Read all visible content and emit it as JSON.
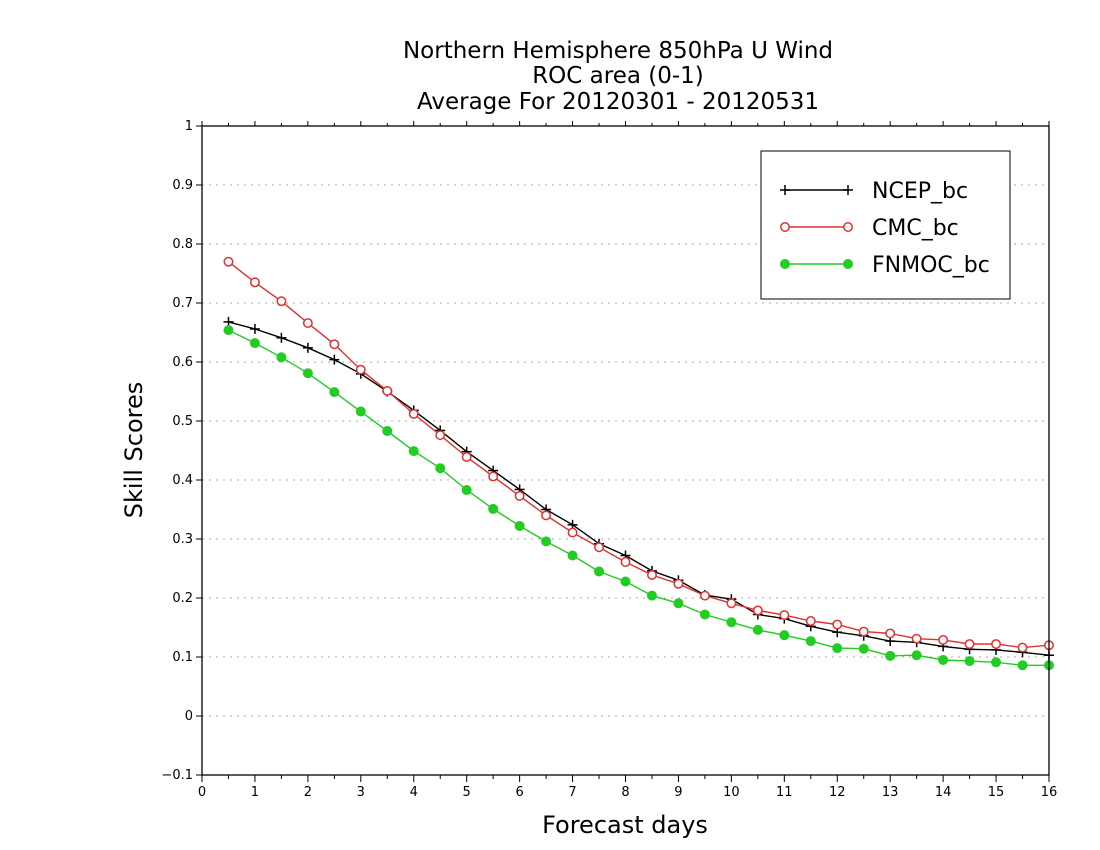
{
  "chart_data": {
    "type": "line",
    "title": [
      "Northern Hemisphere 850hPa U Wind",
      "ROC area (0-1)",
      "Average For 20120301 - 20120531"
    ],
    "xlabel": "Forecast days",
    "ylabel": "Skill Scores",
    "xlim": [
      0,
      16
    ],
    "ylim": [
      -0.1,
      1
    ],
    "xticks": [
      "0",
      "1",
      "2",
      "3",
      "4",
      "5",
      "6",
      "7",
      "8",
      "9",
      "10",
      "11",
      "12",
      "13",
      "14",
      "15",
      "16"
    ],
    "yticks": [
      "−0.1",
      "0",
      "0.1",
      "0.2",
      "0.3",
      "0.4",
      "0.5",
      "0.6",
      "0.7",
      "0.8",
      "0.9",
      "1"
    ],
    "grid": true,
    "legend_position": "top-right",
    "x": [
      0.5,
      1,
      1.5,
      2,
      2.5,
      3,
      3.5,
      4,
      4.5,
      5,
      5.5,
      6,
      6.5,
      7,
      7.5,
      8,
      8.5,
      9,
      9.5,
      10,
      10.5,
      11,
      11.5,
      12,
      12.5,
      13,
      13.5,
      14,
      14.5,
      15,
      15.5,
      16
    ],
    "series": [
      {
        "name": "NCEP_bc",
        "color": "#000000",
        "marker": "plus",
        "values": [
          0.668,
          0.656,
          0.641,
          0.624,
          0.604,
          0.58,
          0.55,
          0.518,
          0.484,
          0.448,
          0.416,
          0.384,
          0.35,
          0.324,
          0.292,
          0.272,
          0.246,
          0.23,
          0.205,
          0.198,
          0.172,
          0.165,
          0.152,
          0.142,
          0.136,
          0.127,
          0.125,
          0.118,
          0.113,
          0.112,
          0.108,
          0.103
        ]
      },
      {
        "name": "CMC_bc",
        "color": "#e03030",
        "marker": "open-circle",
        "values": [
          0.77,
          0.735,
          0.703,
          0.666,
          0.63,
          0.587,
          0.551,
          0.512,
          0.476,
          0.439,
          0.406,
          0.373,
          0.34,
          0.311,
          0.286,
          0.261,
          0.239,
          0.224,
          0.204,
          0.191,
          0.179,
          0.171,
          0.161,
          0.155,
          0.143,
          0.14,
          0.131,
          0.129,
          0.122,
          0.122,
          0.116,
          0.12
        ]
      },
      {
        "name": "FNMOC_bc",
        "color": "#22cc22",
        "marker": "filled-circle",
        "values": [
          0.654,
          0.632,
          0.608,
          0.581,
          0.549,
          0.516,
          0.483,
          0.449,
          0.42,
          0.383,
          0.351,
          0.322,
          0.296,
          0.272,
          0.245,
          0.228,
          0.204,
          0.191,
          0.172,
          0.159,
          0.146,
          0.137,
          0.127,
          0.115,
          0.114,
          0.102,
          0.103,
          0.095,
          0.093,
          0.091,
          0.086,
          0.086
        ]
      }
    ]
  }
}
